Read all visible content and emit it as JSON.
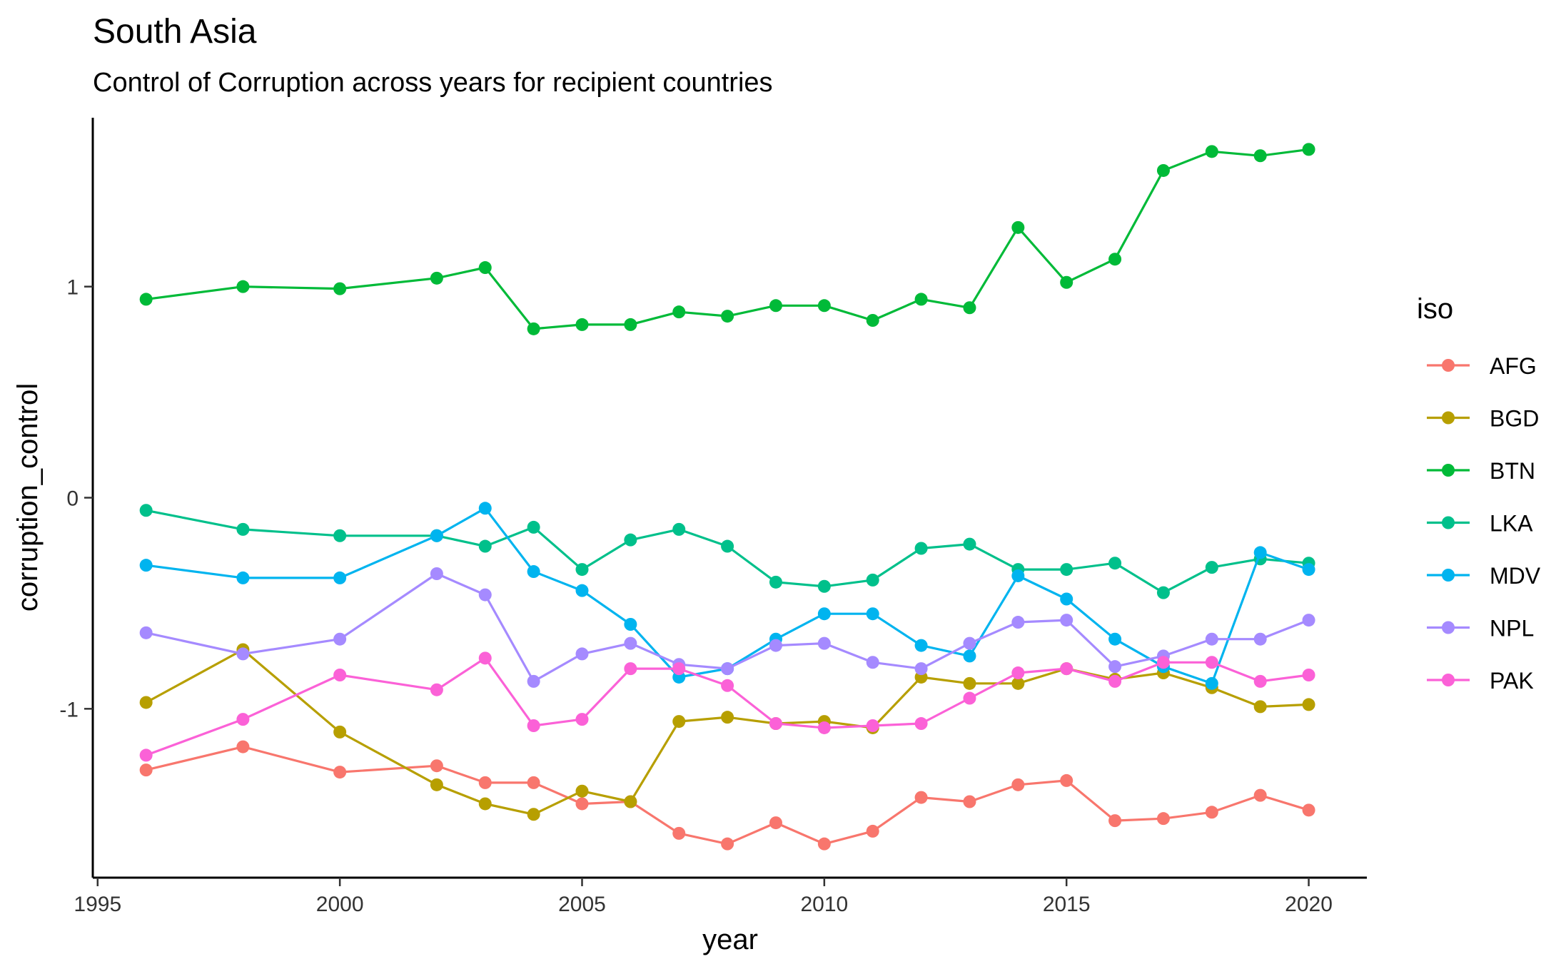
{
  "chart_data": {
    "type": "line",
    "title": "South Asia",
    "subtitle": "Control of Corruption across years for recipient countries",
    "xlabel": "year",
    "ylabel": "corruption_control",
    "xlim": [
      1994.9,
      2021.2
    ],
    "ylim": [
      -1.8,
      1.8
    ],
    "x_ticks": [
      1995,
      2000,
      2005,
      2010,
      2015,
      2020
    ],
    "x_tick_labels": [
      "1995",
      "2000",
      "2005",
      "2010",
      "2015",
      "2020"
    ],
    "y_ticks": [
      1,
      0,
      -1
    ],
    "y_tick_labels": [
      "1",
      "0",
      "-1"
    ],
    "grid": false,
    "legend": {
      "title": "iso",
      "position": "right"
    },
    "years": [
      1996,
      1998,
      2000,
      2002,
      2003,
      2004,
      2005,
      2006,
      2007,
      2008,
      2009,
      2010,
      2011,
      2012,
      2013,
      2014,
      2015,
      2016,
      2017,
      2018,
      2019,
      2020
    ],
    "series": [
      {
        "name": "AFG",
        "color": "#F8766D",
        "values": [
          -1.29,
          -1.18,
          -1.3,
          -1.27,
          -1.35,
          -1.35,
          -1.45,
          -1.44,
          -1.59,
          -1.64,
          -1.54,
          -1.64,
          -1.58,
          -1.42,
          -1.44,
          -1.36,
          -1.34,
          -1.53,
          -1.52,
          -1.49,
          -1.41,
          -1.48
        ]
      },
      {
        "name": "BGD",
        "color": "#B79F00",
        "values": [
          -0.97,
          -0.72,
          -1.11,
          -1.36,
          -1.45,
          -1.5,
          -1.39,
          -1.44,
          -1.06,
          -1.04,
          -1.07,
          -1.06,
          -1.09,
          -0.85,
          -0.88,
          -0.88,
          -0.81,
          -0.86,
          -0.83,
          -0.9,
          -0.99,
          -0.98
        ]
      },
      {
        "name": "BTN",
        "color": "#00BA38",
        "values": [
          0.94,
          1.0,
          0.99,
          1.04,
          1.09,
          0.8,
          0.82,
          0.82,
          0.88,
          0.86,
          0.91,
          0.91,
          0.84,
          0.94,
          0.9,
          1.28,
          1.02,
          1.13,
          1.55,
          1.64,
          1.62,
          1.65
        ]
      },
      {
        "name": "LKA",
        "color": "#00C08B",
        "values": [
          -0.06,
          -0.15,
          -0.18,
          -0.18,
          -0.23,
          -0.14,
          -0.34,
          -0.2,
          -0.15,
          -0.23,
          -0.4,
          -0.42,
          -0.39,
          -0.24,
          -0.22,
          -0.34,
          -0.34,
          -0.31,
          -0.45,
          -0.33,
          -0.29,
          -0.31
        ]
      },
      {
        "name": "MDV",
        "color": "#00B4EF",
        "values": [
          -0.32,
          -0.38,
          -0.38,
          -0.18,
          -0.05,
          -0.35,
          -0.44,
          -0.6,
          -0.85,
          -0.81,
          -0.67,
          -0.55,
          -0.55,
          -0.7,
          -0.75,
          -0.37,
          -0.48,
          -0.67,
          -0.8,
          -0.88,
          -0.26,
          -0.34
        ]
      },
      {
        "name": "NPL",
        "color": "#A58AFF",
        "values": [
          -0.64,
          -0.74,
          -0.67,
          -0.36,
          -0.46,
          -0.87,
          -0.74,
          -0.69,
          -0.79,
          -0.81,
          -0.7,
          -0.69,
          -0.78,
          -0.81,
          -0.69,
          -0.59,
          -0.58,
          -0.8,
          -0.75,
          -0.67,
          -0.67,
          -0.58
        ]
      },
      {
        "name": "PAK",
        "color": "#FB61D7",
        "values": [
          -1.22,
          -1.05,
          -0.84,
          -0.91,
          -0.76,
          -1.08,
          -1.05,
          -0.81,
          -0.81,
          -0.89,
          -1.07,
          -1.09,
          -1.08,
          -1.07,
          -0.95,
          -0.83,
          -0.81,
          -0.87,
          -0.78,
          -0.78,
          -0.87,
          -0.84
        ]
      }
    ]
  }
}
